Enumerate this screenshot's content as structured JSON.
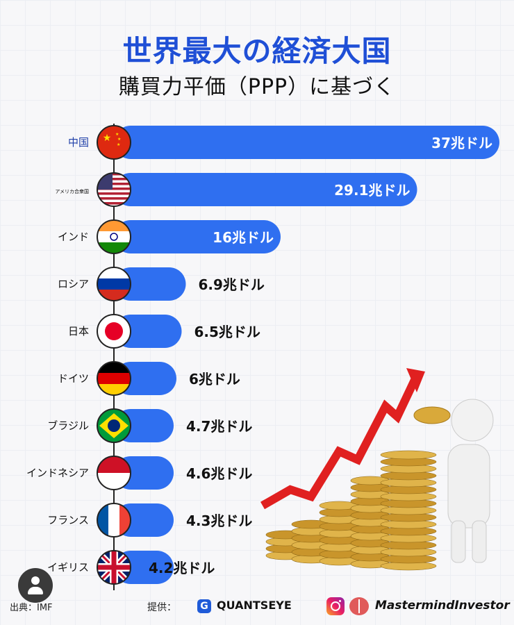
{
  "title": "世界最大の経済大国",
  "subtitle": "購買力平価（PPP）に基づく",
  "chart_data": {
    "type": "bar",
    "orientation": "horizontal",
    "unit": "兆ドル",
    "categories": [
      "中国",
      "アメリカ合衆国",
      "インド",
      "ロシア",
      "日本",
      "ドイツ",
      "ブラジル",
      "インドネシア",
      "フランス",
      "イギリス"
    ],
    "values": [
      37,
      29.1,
      16,
      6.9,
      6.5,
      6,
      4.7,
      4.6,
      4.3,
      4.2
    ],
    "data_labels": [
      "37兆ドル",
      "29.1兆ドル",
      "16兆ドル",
      "6.9兆ドル",
      "6.5兆ドル",
      "6兆ドル",
      "4.7兆ドル",
      "4.6兆ドル",
      "4.3兆ドル",
      "4.2兆ドル"
    ],
    "flags": [
      "china-flag",
      "usa-flag",
      "india-flag",
      "russia-flag",
      "japan-flag",
      "germany-flag",
      "brazil-flag",
      "indonesia-flag",
      "france-flag",
      "uk-flag"
    ],
    "bar_color": "#2f6ff0",
    "title": "世界最大の経済大国",
    "subtitle": "購買力平価（PPP）に基づく"
  },
  "footer": {
    "source": "出典：IMF",
    "provided_by": "提供：",
    "brand_left": "QUANTSEYE",
    "brand_right": "MastermindInvestor"
  },
  "icons": {
    "avatar": "user-avatar-icon",
    "quantseye": "quantseye-logo-icon",
    "instagram": "instagram-icon",
    "brain": "brain-icon",
    "illustration": "coin-stacks-rising-arrow-illustration"
  }
}
